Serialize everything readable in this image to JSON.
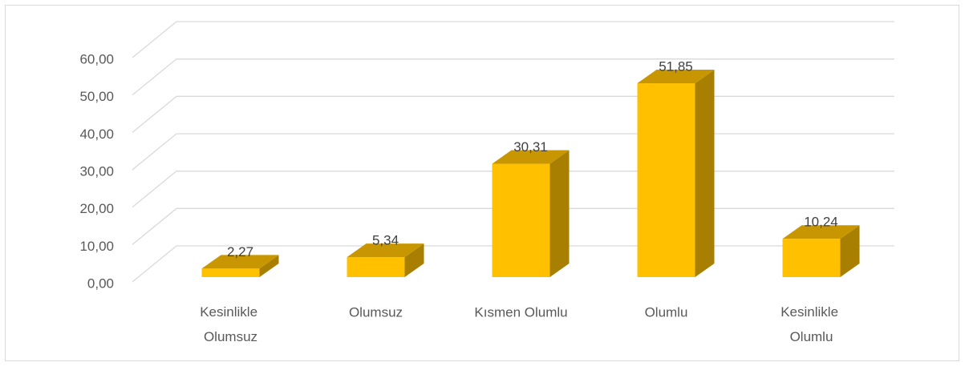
{
  "chart_data": {
    "type": "bar3d",
    "categories": [
      "Kesinlikle Olumsuz",
      "Olumsuz",
      "Kısmen Olumlu",
      "Olumlu",
      "Kesinlikle Olumlu"
    ],
    "values": [
      2.27,
      5.34,
      30.31,
      51.85,
      10.24
    ],
    "value_labels": [
      "2,27",
      "5,34",
      "30,31",
      "51,85",
      "10,24"
    ],
    "color": "#ffc000",
    "ylim": [
      0,
      60
    ],
    "yticks": [
      {
        "value": 0,
        "label": "0,00"
      },
      {
        "value": 10,
        "label": "10,00"
      },
      {
        "value": 20,
        "label": "20,00"
      },
      {
        "value": 30,
        "label": "30,00"
      },
      {
        "value": 40,
        "label": "40,00"
      },
      {
        "value": 50,
        "label": "50,00"
      },
      {
        "value": 60,
        "label": "60,00"
      }
    ],
    "grid": true
  }
}
